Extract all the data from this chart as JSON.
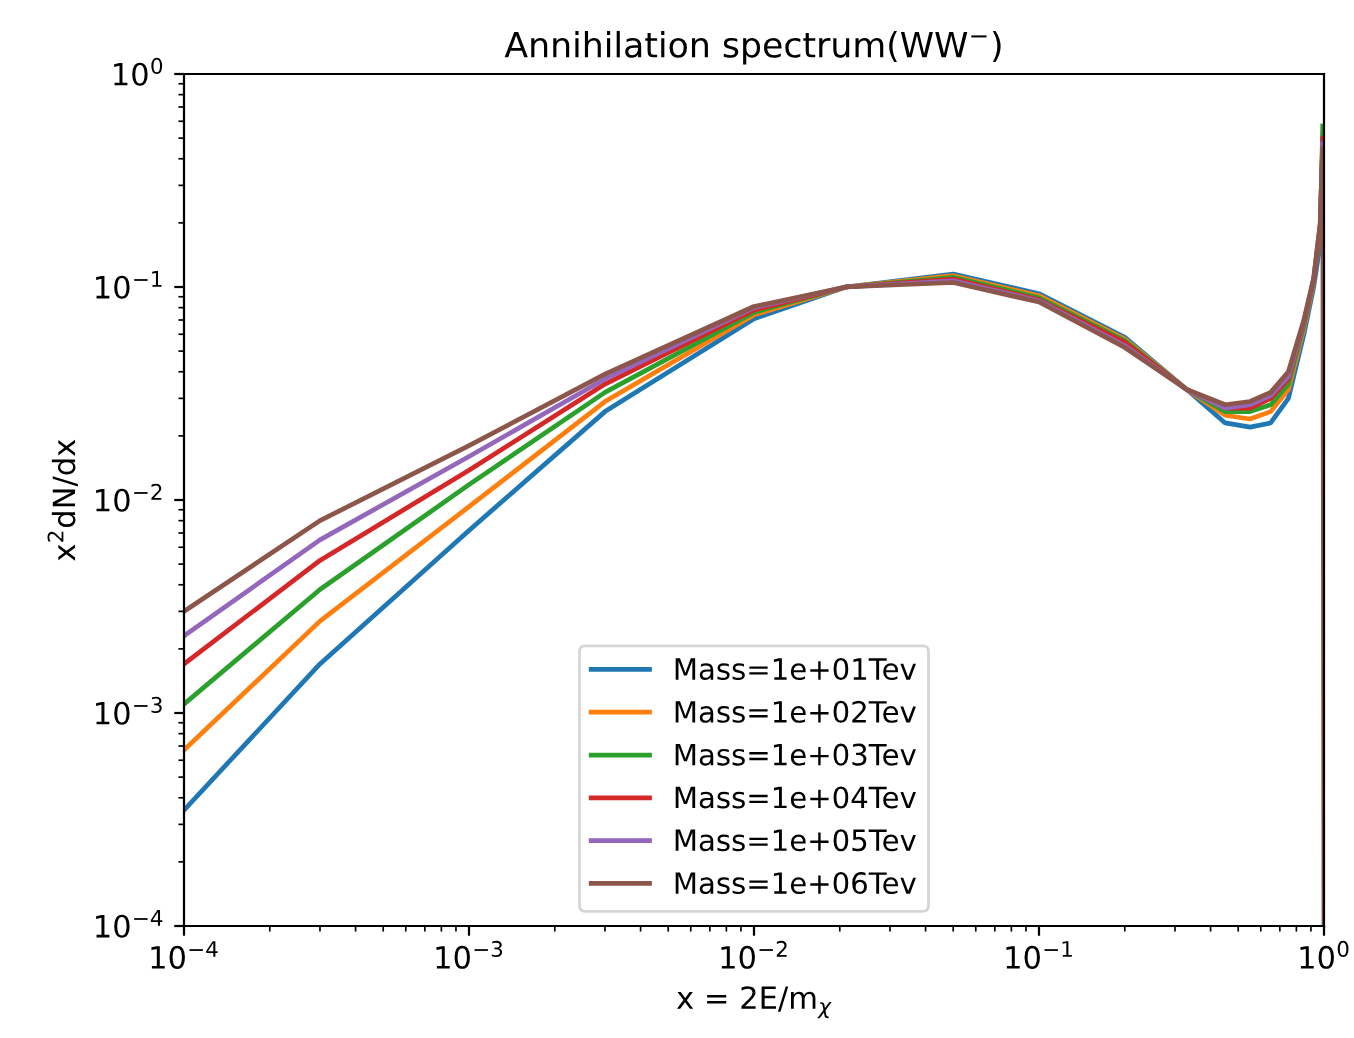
{
  "chart_data": {
    "type": "line",
    "title": "Annihilation spectrum(WW$^{−}$)",
    "xlabel": "x = 2E/m$_{χ}$",
    "ylabel": "x$^{2}$dN/dx",
    "log": "xy",
    "grid": false,
    "legend": "bottom",
    "marker": "none",
    "line_style": "solid",
    "xlim": [
      0.0001,
      1
    ],
    "ylim": [
      0.0001,
      1
    ],
    "xticks": [
      {
        "value": 0.0001,
        "label": "10$^{−4}$"
      },
      {
        "value": 0.001,
        "label": "10$^{−3}$"
      },
      {
        "value": 0.01,
        "label": "10$^{−2}$"
      },
      {
        "value": 0.1,
        "label": "10$^{−1}$"
      },
      {
        "value": 1,
        "label": "10$^{0}$"
      }
    ],
    "yticks": [
      {
        "value": 0.0001,
        "label": "10$^{−4}$"
      },
      {
        "value": 0.001,
        "label": "10$^{−3}$"
      },
      {
        "value": 0.01,
        "label": "10$^{−2}$"
      },
      {
        "value": 0.1,
        "label": "10$^{−1}$"
      },
      {
        "value": 1,
        "label": "10$^{0}$"
      }
    ],
    "x": [
      0.0001,
      0.0003,
      0.001,
      0.003,
      0.01,
      0.021,
      0.05,
      0.1,
      0.2,
      0.33,
      0.45,
      0.55,
      0.65,
      0.75,
      0.85,
      0.92,
      0.97,
      0.99,
      1.0
    ],
    "series": [
      {
        "name": "Mass=1e+01Tev",
        "color": "#1f77b4",
        "values": [
          0.00035,
          0.0017,
          0.0072,
          0.026,
          0.071,
          0.1,
          0.115,
          0.093,
          0.058,
          0.033,
          0.023,
          0.022,
          0.023,
          0.03,
          0.06,
          0.1,
          0.16,
          0.3,
          null
        ]
      },
      {
        "name": "Mass=1e+02Tev",
        "color": "#ff7f0e",
        "values": [
          0.00067,
          0.0027,
          0.0093,
          0.029,
          0.074,
          0.1,
          0.113,
          0.091,
          0.057,
          0.033,
          0.025,
          0.024,
          0.026,
          0.033,
          0.064,
          0.105,
          null,
          null,
          null
        ]
      },
      {
        "name": "Mass=1e+03Tev",
        "color": "#2ca02c",
        "values": [
          0.0011,
          0.0038,
          0.0118,
          0.032,
          0.076,
          0.1,
          0.111,
          0.089,
          0.056,
          0.033,
          0.026,
          0.026,
          0.028,
          0.035,
          0.066,
          0.107,
          0.18,
          0.57,
          null
        ]
      },
      {
        "name": "Mass=1e+04Tev",
        "color": "#d62728",
        "values": [
          0.0017,
          0.0052,
          0.0138,
          0.035,
          0.078,
          0.1,
          0.109,
          0.087,
          0.055,
          0.033,
          0.027,
          0.027,
          0.03,
          0.037,
          0.068,
          0.108,
          0.19,
          0.5,
          null
        ]
      },
      {
        "name": "Mass=1e+05Tev",
        "color": "#9467bd",
        "values": [
          0.0023,
          0.0065,
          0.016,
          0.037,
          0.08,
          0.1,
          0.107,
          0.086,
          0.053,
          0.033,
          0.027,
          0.028,
          0.031,
          0.038,
          0.069,
          0.109,
          0.195,
          0.47,
          null
        ]
      },
      {
        "name": "Mass=1e+06Tev",
        "color": "#8c564b",
        "values": [
          0.003,
          0.008,
          0.018,
          0.039,
          0.081,
          0.1,
          0.105,
          0.085,
          0.052,
          0.033,
          0.028,
          0.029,
          0.032,
          0.04,
          0.07,
          0.11,
          0.2,
          0.45,
          0.0001
        ]
      }
    ]
  }
}
